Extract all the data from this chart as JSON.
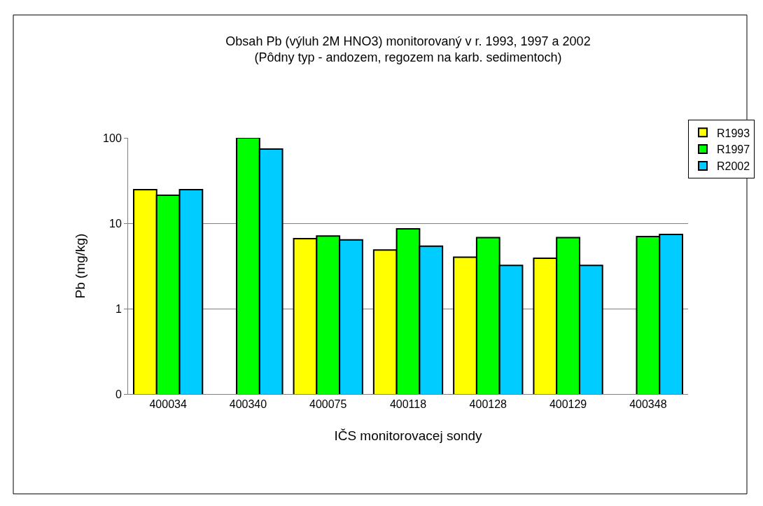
{
  "chart_data": {
    "type": "bar",
    "title": "Obsah Pb (výluh 2M HNO3) monitorovaný v r. 1993, 1997 a 2002",
    "subtitle": "(Pôdny typ - andozem, regozem na karb. sedimentoch)",
    "xlabel": "IČS monitorovacej sondy",
    "ylabel": "Pb (mg/kg)",
    "categories": [
      "400034",
      "400340",
      "400075",
      "400118",
      "400128",
      "400129",
      "400348"
    ],
    "series": [
      {
        "name": "R1993",
        "color": "#ffff00",
        "values": [
          24.7,
          null,
          6.6,
          4.85,
          4.0,
          3.9,
          null
        ]
      },
      {
        "name": "R1997",
        "color": "#00ff00",
        "values": [
          21.3,
          100,
          7.1,
          8.6,
          6.8,
          6.8,
          7.0
        ]
      },
      {
        "name": "R2002",
        "color": "#00ccff",
        "values": [
          24.7,
          74,
          6.4,
          5.4,
          3.2,
          3.2,
          7.4
        ]
      }
    ],
    "log": "y",
    "ylim": [
      0.1,
      100
    ],
    "yticks": [
      {
        "value": 0.1,
        "label": "0"
      },
      1,
      10,
      100
    ],
    "grid": "y",
    "legend": "top right"
  }
}
